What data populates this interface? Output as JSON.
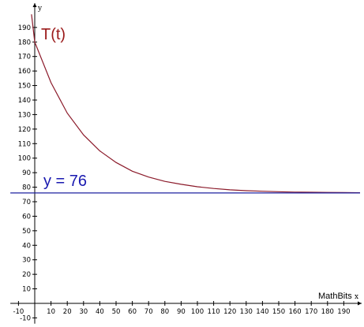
{
  "chart_data": {
    "type": "line",
    "xlabel": "x",
    "ylabel": "y",
    "xlim": [
      -15,
      200
    ],
    "ylim": [
      -14,
      200
    ],
    "x_ticks": [
      -10,
      10,
      20,
      30,
      40,
      50,
      60,
      70,
      80,
      90,
      100,
      110,
      120,
      130,
      140,
      150,
      160,
      170,
      180,
      190
    ],
    "y_ticks": [
      -10,
      10,
      20,
      30,
      40,
      50,
      60,
      70,
      80,
      90,
      100,
      110,
      120,
      130,
      140,
      150,
      160,
      170,
      180,
      190
    ],
    "grid": false,
    "series": [
      {
        "name": "T(t)",
        "color": "#8b1a2a",
        "label_color": "#9b1b1b",
        "x": [
          -2,
          0,
          10,
          20,
          30,
          40,
          50,
          60,
          70,
          80,
          90,
          100,
          110,
          120,
          130,
          140,
          150,
          160,
          170,
          180,
          190,
          200
        ],
        "y": [
          199,
          180,
          152,
          131,
          116,
          105,
          97,
          91,
          87,
          84,
          82,
          80.3,
          79.1,
          78.2,
          77.6,
          77.2,
          76.9,
          76.6,
          76.5,
          76.4,
          76.3,
          76.2
        ]
      },
      {
        "name": "y = 76",
        "color": "#1e22a0",
        "label_color": "#1a1ab0",
        "x": [
          -15,
          200
        ],
        "y": [
          76,
          76
        ]
      }
    ],
    "annotations": [
      "MathBits"
    ]
  }
}
